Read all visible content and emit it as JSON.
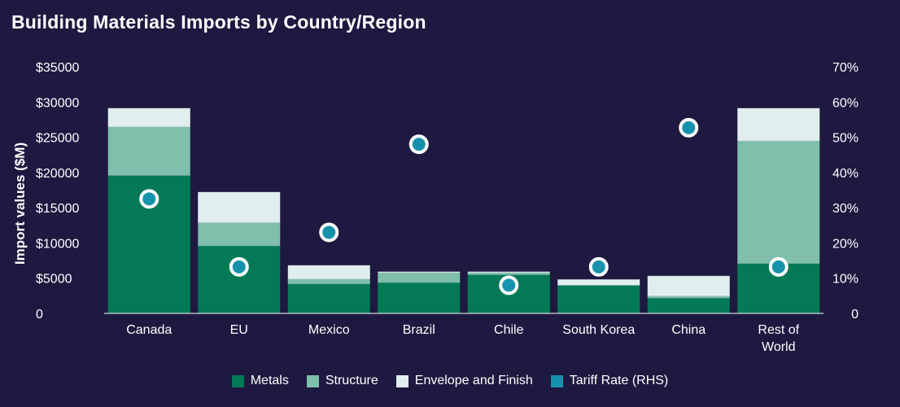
{
  "chart_data": {
    "type": "bar",
    "stacked": true,
    "title": "Building Materials Imports by Country/Region",
    "ylabel": "Import values ($M)",
    "ylim": [
      0,
      35000
    ],
    "y_ticks": [
      "$35000",
      "$30000",
      "$25000",
      "$20000",
      "$15000",
      "$10000",
      "$5000",
      "0"
    ],
    "y_tick_values": [
      35000,
      30000,
      25000,
      20000,
      15000,
      10000,
      5000,
      0
    ],
    "y2lim": [
      0,
      70
    ],
    "y2_ticks": [
      "70%",
      "60%",
      "50%",
      "40%",
      "30%",
      "20%",
      "10%",
      "0"
    ],
    "y2_tick_values": [
      70,
      60,
      50,
      40,
      30,
      20,
      10,
      0
    ],
    "categories": [
      "Canada",
      "EU",
      "Mexico",
      "Brazil",
      "Chile",
      "South Korea",
      "China",
      "Rest of World"
    ],
    "series": [
      {
        "name": "Metals",
        "color": "#037a55",
        "values": [
          19600,
          9600,
          4200,
          4400,
          5500,
          4000,
          2200,
          7100
        ]
      },
      {
        "name": "Structure",
        "color": "#7fbfab",
        "values": [
          6900,
          3300,
          700,
          1400,
          300,
          0,
          300,
          17400
        ]
      },
      {
        "name": "Envelope and Finish",
        "color": "#e0efee",
        "values": [
          2600,
          4300,
          1900,
          100,
          100,
          800,
          2800,
          4600
        ]
      }
    ],
    "line_series": {
      "name": "Tariff Rate (RHS)",
      "color": "#1692ad",
      "axis": "right",
      "values": [
        32.5,
        13.2,
        23,
        48,
        8,
        13.2,
        52.7,
        13.2
      ]
    },
    "legend": [
      {
        "name": "Metals",
        "color": "#037a55"
      },
      {
        "name": "Structure",
        "color": "#7fbfab"
      },
      {
        "name": "Envelope and Finish",
        "color": "#e0efee"
      },
      {
        "name": "Tariff Rate (RHS)",
        "color": "#1692ad"
      }
    ],
    "legend_position": "bottom",
    "grid": false
  }
}
